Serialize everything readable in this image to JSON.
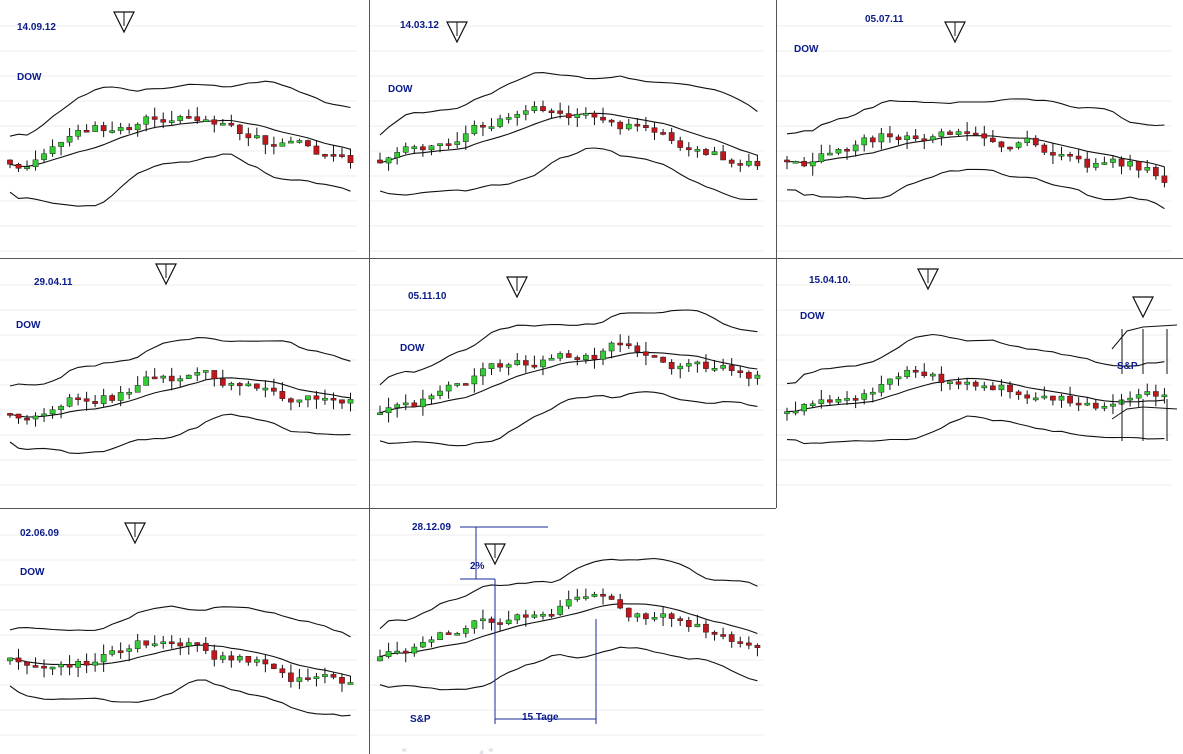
{
  "chart_data": [
    {
      "type": "candlestick",
      "date": "14.09.12",
      "index": "DOW"
    },
    {
      "type": "candlestick",
      "date": "14.03.12",
      "index": "DOW"
    },
    {
      "type": "candlestick",
      "date": "05.07.11",
      "index": "DOW"
    },
    {
      "type": "candlestick",
      "date": "29.04.11",
      "index": "DOW"
    },
    {
      "type": "candlestick",
      "date": "05.11.10",
      "index": "DOW"
    },
    {
      "type": "candlestick",
      "date": "15.04.10.",
      "index": "DOW",
      "inset_index": "S&P"
    },
    {
      "type": "candlestick",
      "date": "02.06.09",
      "index": "DOW"
    },
    {
      "type": "candlestick",
      "date": "28.12.09",
      "index": "S&P",
      "annotations": {
        "rise": "2%",
        "duration": "15 Tage"
      }
    }
  ],
  "colors": {
    "up": "#33cc33",
    "down": "#c0161c",
    "line": "#111111",
    "grid": "#d9d9d9",
    "label": "#0a1a8a",
    "divider": "#555555"
  },
  "watermark": "investing.com"
}
